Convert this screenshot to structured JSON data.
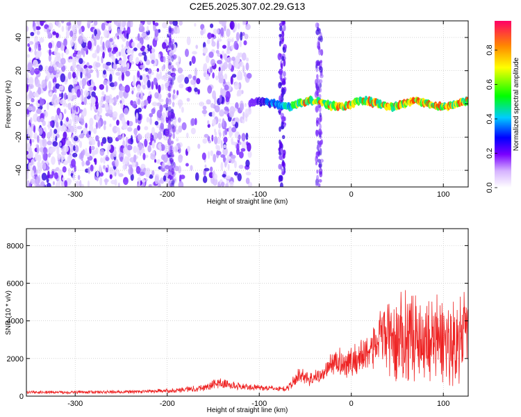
{
  "figure": {
    "title": "C2E5.2025.307.02.29.G13"
  },
  "chart_data": [
    {
      "type": "heatmap",
      "xlabel": "Height of straight line (km)",
      "ylabel": "Frequency (Hz)",
      "xlim": [
        -353,
        127
      ],
      "ylim": [
        -50,
        50
      ],
      "xticks": [
        -300,
        -200,
        -100,
        0,
        100
      ],
      "yticks": [
        -40,
        -20,
        0,
        20,
        40
      ],
      "colorbar": {
        "label": "Normalized spectral amplitude",
        "range": [
          0,
          0.97
        ],
        "ticks": [
          0.0,
          0.2,
          0.4,
          0.6,
          0.8
        ],
        "colormap": "white-violet-blue-cyan-green-yellow-red"
      },
      "features": [
        {
          "name": "broadband-noise",
          "x_range": [
            -353,
            -110
          ],
          "y_range": [
            -50,
            50
          ],
          "amplitude": 0.1
        },
        {
          "name": "narrow-line",
          "x_range": [
            -110,
            127
          ],
          "y_center": 0,
          "amplitude_peak": 0.97
        }
      ],
      "grid": true
    },
    {
      "type": "line",
      "xlabel": "Height of straight line (km)",
      "ylabel": "SNR (10 * v/v)",
      "xlim": [
        -353,
        127
      ],
      "ylim": [
        0,
        8900
      ],
      "xticks": [
        -300,
        -200,
        -100,
        0,
        100
      ],
      "yticks": [
        0,
        2000,
        4000,
        6000,
        8000
      ],
      "series": [
        {
          "color": "#ee2222",
          "envelope_x": [
            -353,
            -250,
            -200,
            -160,
            -145,
            -120,
            -100,
            -70,
            -55,
            -45,
            -30,
            -20,
            0,
            20,
            35,
            50,
            60,
            80,
            100,
            115,
            127
          ],
          "envelope_y_mid": [
            200,
            220,
            280,
            450,
            700,
            500,
            450,
            380,
            1200,
            900,
            1200,
            1800,
            1800,
            2500,
            3200,
            3000,
            3300,
            3100,
            3000,
            2800,
            3500
          ],
          "envelope_y_amp": [
            80,
            90,
            120,
            200,
            300,
            200,
            150,
            150,
            500,
            400,
            400,
            700,
            900,
            1200,
            1800,
            2500,
            2500,
            2400,
            2500,
            2300,
            2300
          ]
        }
      ],
      "grid": true
    }
  ]
}
